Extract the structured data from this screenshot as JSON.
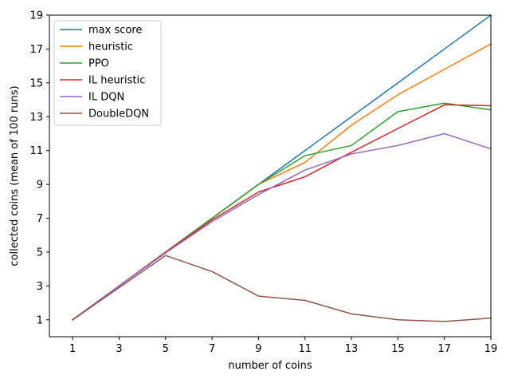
{
  "chart_data": {
    "type": "line",
    "title": "",
    "xlabel": "number of coins",
    "ylabel": "collected coins (mean of 100 runs)",
    "xlim": [
      0,
      19
    ],
    "ylim": [
      0,
      19
    ],
    "xticks": [
      1,
      3,
      5,
      7,
      9,
      11,
      13,
      15,
      17,
      19
    ],
    "yticks": [
      1,
      3,
      5,
      7,
      9,
      11,
      13,
      15,
      17,
      19
    ],
    "grid": false,
    "legend_position": "top-left",
    "x": [
      1,
      3,
      5,
      7,
      9,
      11,
      13,
      15,
      17,
      19
    ],
    "series": [
      {
        "name": "max score",
        "color": "#1f77b4",
        "values": [
          1,
          3,
          5,
          7,
          9,
          11,
          13,
          15,
          17,
          19
        ]
      },
      {
        "name": "heuristic",
        "color": "#ff7f0e",
        "values": [
          1,
          3,
          5,
          7,
          9,
          10.3,
          12.5,
          14.3,
          15.8,
          17.3
        ]
      },
      {
        "name": "PPO",
        "color": "#2ca02c",
        "values": [
          1,
          3,
          5,
          7,
          9,
          10.7,
          11.3,
          13.3,
          13.8,
          13.4
        ]
      },
      {
        "name": "IL heuristic",
        "color": "#d62728",
        "values": [
          1,
          3,
          5,
          6.9,
          8.55,
          9.45,
          10.9,
          12.3,
          13.7,
          13.65
        ]
      },
      {
        "name": "IL DQN",
        "color": "#9467bd",
        "values": [
          1,
          3,
          4.95,
          6.8,
          8.4,
          9.85,
          10.8,
          11.3,
          12.0,
          11.1
        ]
      },
      {
        "name": "DoubleDQN",
        "color": "#8c564b",
        "values": [
          1,
          2.9,
          4.8,
          3.85,
          2.4,
          2.15,
          1.35,
          1.0,
          0.9,
          1.1
        ]
      }
    ]
  }
}
